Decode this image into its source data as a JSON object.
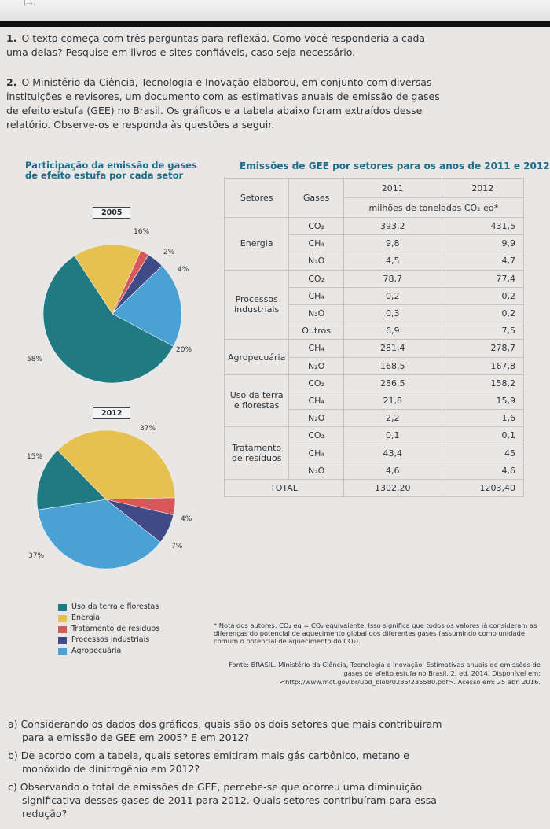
{
  "header": {
    "top_text": "[...]"
  },
  "questions_intro": [
    {
      "num": "1.",
      "text": "O texto começa com três perguntas para reflexão. Como você responderia a cada uma delas? Pesquise em livros e sites confiáveis, caso seja necessário."
    },
    {
      "num": "2.",
      "text": "O Ministério da Ciência, Tecnologia e Inovação elaborou, em conjunto com diversas instituições e revisores, um documento com as estimativas anuais de emissão de gases de efeito estufa (GEE) no Brasil. Os gráficos e a tabela abaixo foram extraídos desse relatório. Observe-os e responda às questões a seguir."
    }
  ],
  "left_panel": {
    "title": "Participação da emissão de gases de efeito estufa por cada setor",
    "legend": [
      {
        "label": "Uso da terra e florestas",
        "color": "#1f7a82"
      },
      {
        "label": "Energia",
        "color": "#e7c150"
      },
      {
        "label": "Tratamento de resíduos",
        "color": "#d8575a"
      },
      {
        "label": "Processos industriais",
        "color": "#3f4a86"
      },
      {
        "label": "Agropecuária",
        "color": "#4aa1d6"
      }
    ]
  },
  "chart_data": [
    {
      "type": "pie",
      "title": "2005",
      "labels": [
        "Energia",
        "Tratamento de resíduos",
        "Processos industriais",
        "Agropecuária",
        "Uso da terra e florestas"
      ],
      "values": [
        16,
        2,
        4,
        20,
        58
      ],
      "value_labels": [
        "16%",
        "2%",
        "4%",
        "20%",
        "58%"
      ],
      "colors": [
        "#e7c150",
        "#d8575a",
        "#3f4a86",
        "#4aa1d6",
        "#1f7a82"
      ]
    },
    {
      "type": "pie",
      "title": "2012",
      "labels": [
        "Energia",
        "Tratamento de resíduos",
        "Processos industriais",
        "Agropecuária",
        "Uso da terra e florestas"
      ],
      "values": [
        37,
        4,
        7,
        37,
        15
      ],
      "value_labels": [
        "37%",
        "4%",
        "7%",
        "37%",
        "15%"
      ],
      "colors": [
        "#e7c150",
        "#d8575a",
        "#3f4a86",
        "#4aa1d6",
        "#1f7a82"
      ]
    }
  ],
  "table": {
    "title": "Emissões de GEE por setores para os anos de 2011 e 2012",
    "col_setores": "Setores",
    "col_gases": "Gases",
    "col_2011": "2011",
    "col_2012": "2012",
    "unit": "milhões de toneladas CO₂ eq*",
    "sectors": [
      {
        "name": "Energia",
        "rows": [
          {
            "gas": "CO₂",
            "v2011": "393,2",
            "v2012": "431,5"
          },
          {
            "gas": "CH₄",
            "v2011": "9,8",
            "v2012": "9,9"
          },
          {
            "gas": "N₂O",
            "v2011": "4,5",
            "v2012": "4,7"
          }
        ]
      },
      {
        "name": "Processos industriais",
        "rows": [
          {
            "gas": "CO₂",
            "v2011": "78,7",
            "v2012": "77,4"
          },
          {
            "gas": "CH₄",
            "v2011": "0,2",
            "v2012": "0,2"
          },
          {
            "gas": "N₂O",
            "v2011": "0,3",
            "v2012": "0,2"
          },
          {
            "gas": "Outros",
            "v2011": "6,9",
            "v2012": "7,5"
          }
        ]
      },
      {
        "name": "Agropecuária",
        "rows": [
          {
            "gas": "CH₄",
            "v2011": "281,4",
            "v2012": "278,7"
          },
          {
            "gas": "N₂O",
            "v2011": "168,5",
            "v2012": "167,8"
          }
        ]
      },
      {
        "name": "Uso da terra e florestas",
        "rows": [
          {
            "gas": "CO₂",
            "v2011": "286,5",
            "v2012": "158,2"
          },
          {
            "gas": "CH₄",
            "v2011": "21,8",
            "v2012": "15,9"
          },
          {
            "gas": "N₂O",
            "v2011": "2,2",
            "v2012": "1,6"
          }
        ]
      },
      {
        "name": "Tratamento de resíduos",
        "rows": [
          {
            "gas": "CO₂",
            "v2011": "0,1",
            "v2012": "0,1"
          },
          {
            "gas": "CH₄",
            "v2011": "43,4",
            "v2012": "45"
          },
          {
            "gas": "N₂O",
            "v2011": "4,6",
            "v2012": "4,6"
          }
        ]
      }
    ],
    "total_label": "TOTAL",
    "total_2011": "1302,20",
    "total_2012": "1203,40"
  },
  "note": "* Nota dos autores: CO₂ eq = CO₂ equivalente. Isso significa que todos os valores já consideram as diferenças do potencial de aquecimento global dos diferentes gases (assumindo como unidade comum o potencial de aquecimento do CO₂).",
  "source": "Fonte: BRASIL. Ministério da Ciência, Tecnologia e Inovação. Estimativas anuais de emissões de gases de efeito estufa no Brasil. 2. ed. 2014. Disponível em: <http://www.mct.gov.br/upd_blob/0235/235580.pdf>. Acesso em: 25 abr. 2016.",
  "questions": [
    {
      "letter": "a)",
      "text": "Considerando os dados dos gráficos, quais são os dois setores que mais contribuíram para a emissão de GEE em 2005? E em 2012?"
    },
    {
      "letter": "b)",
      "text": "De acordo com a tabela, quais setores emitiram mais gás carbônico, metano e monóxido de dinitrogênio em 2012?"
    },
    {
      "letter": "c)",
      "text": "Observando o total de emissões de GEE, percebe-se que ocorreu uma diminuição significativa desses gases de 2011 para 2012. Quais setores contribuíram para essa redução?"
    }
  ]
}
